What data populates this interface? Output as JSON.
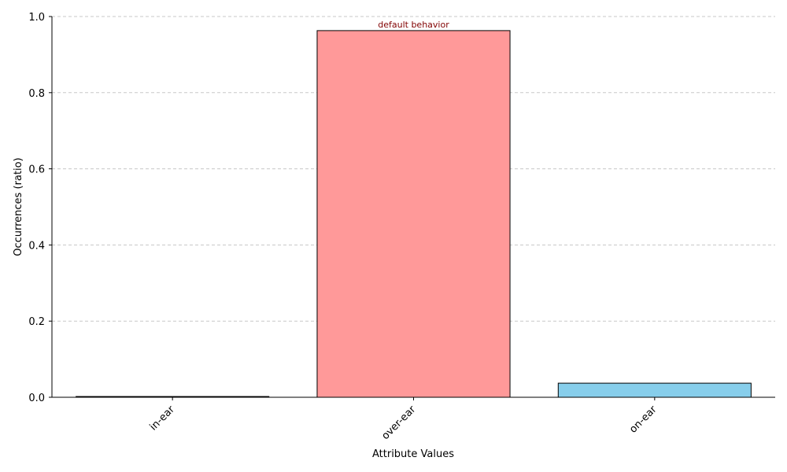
{
  "chart_data": {
    "type": "bar",
    "categories": [
      "in-ear",
      "over-ear",
      "on-ear"
    ],
    "values": [
      0.002,
      0.963,
      0.037
    ],
    "colors": [
      "#ff9999",
      "#ff9999",
      "#87ceeb"
    ],
    "edge_color": "#000000",
    "title": "",
    "xlabel": "Attribute Values",
    "ylabel": "Occurrences (ratio)",
    "ylim": [
      0,
      1.0
    ],
    "yticks": [
      "0.0",
      "0.2",
      "0.4",
      "0.6",
      "0.8",
      "1.0"
    ],
    "grid": "y-dashed",
    "annotations": [
      {
        "category": "over-ear",
        "text": "default behavior",
        "color": "#800000"
      }
    ]
  }
}
